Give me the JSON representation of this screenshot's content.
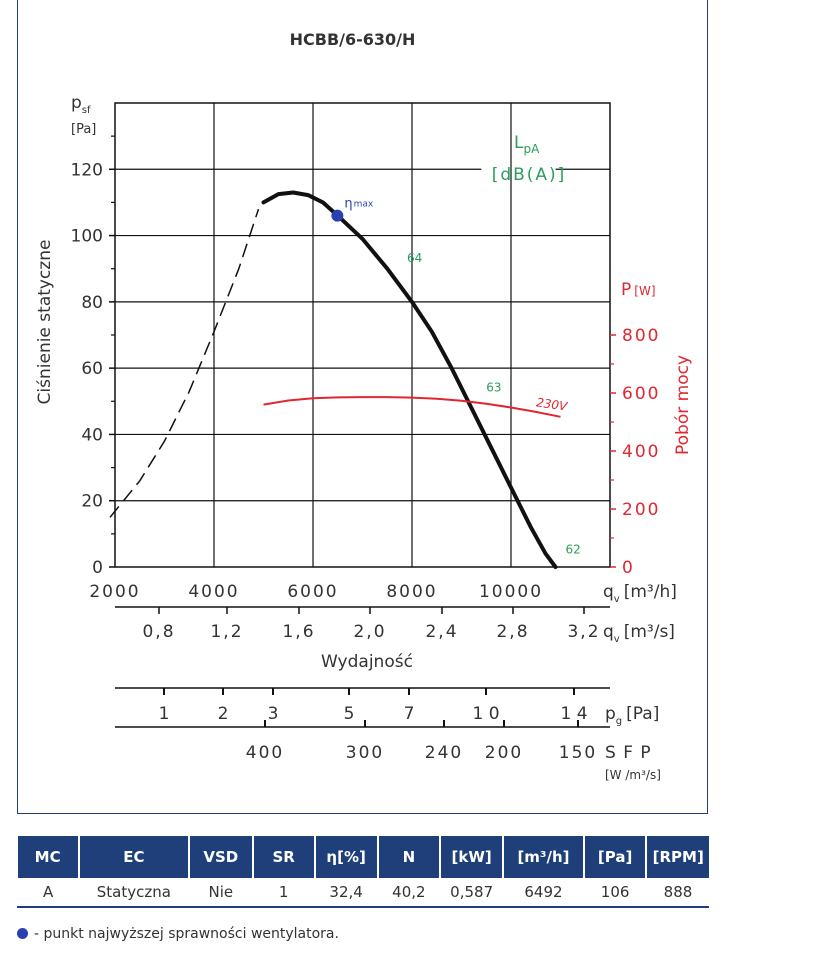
{
  "chart_data": {
    "type": "line",
    "title": "HCBB/6-630/H",
    "ylabel_main": "Ciśnienie statyczne",
    "ylabel_unit_top": "p",
    "ylabel_unit_sub": "sf",
    "ylabel_unit_bracket": "[Pa]",
    "ylim": [
      0,
      140
    ],
    "yticks": [
      "0",
      "20",
      "40",
      "60",
      "80",
      "100",
      "120"
    ],
    "x_unit": "[m³/h]",
    "xlim": [
      2000,
      12000
    ],
    "xticks": [
      "2000",
      "4000",
      "6000",
      "8000",
      "10000"
    ],
    "secondary_y": {
      "label": "Pobór mocy",
      "unit_symbol": "P",
      "unit_bracket": "[W]",
      "ticks": [
        "0",
        "200",
        "400",
        "600",
        "800"
      ]
    },
    "lpa_label": "L",
    "lpa_sub": "pA",
    "lpa_unit": "[dB(A)]",
    "eta_label": "η",
    "eta_sub": "max",
    "series": [
      {
        "role": "fan-curve",
        "x": [
          5000,
          5300,
          5600,
          5900,
          6200,
          6500,
          7000,
          7500,
          8000,
          8400,
          8800,
          9200,
          9600,
          10000,
          10400,
          10700,
          10900
        ],
        "y": [
          110,
          112.5,
          113,
          112.2,
          110,
          106,
          99,
          90,
          80,
          71,
          60,
          48,
          36,
          24,
          12,
          4,
          0
        ]
      },
      {
        "role": "fan-curve-unstable",
        "x": [
          1900,
          2500,
          3000,
          3500,
          4000,
          4500,
          4900
        ],
        "y": [
          15,
          26,
          38,
          53,
          71,
          90,
          108
        ]
      },
      {
        "role": "power-curve",
        "name": "230V",
        "x": [
          5000,
          5500,
          6000,
          6500,
          7000,
          7500,
          8000,
          8500,
          9000,
          9500,
          10000,
          10500,
          11000
        ],
        "power": [
          560,
          574,
          582,
          585,
          586,
          586,
          584,
          580,
          573,
          563,
          550,
          535,
          518
        ]
      }
    ],
    "eta_point": {
      "x": 6492,
      "y": 106
    },
    "lpa_labels": [
      {
        "text": "64",
        "x": 7900,
        "y": 92
      },
      {
        "text": "63",
        "x": 9500,
        "y": 53
      },
      {
        "text": "62",
        "x": 11100,
        "y": 4
      }
    ],
    "power_series_label": {
      "text": "230V",
      "x": 10500,
      "y": 48.5
    },
    "axis_flow_m3s": {
      "ticks": [
        "0,8",
        "1,2",
        "1,6",
        "2,0",
        "2,4",
        "2,8",
        "3,2"
      ],
      "unit_symbol": "q",
      "unit_sub": "v",
      "unit": "[m³/s]",
      "label": "Wydajność"
    },
    "axis_flow_m3h_unit": {
      "symbol": "q",
      "sub": "v"
    },
    "axis_pg": {
      "ticks": [
        "1",
        "2",
        "3",
        "5",
        "7",
        "1 0",
        "1 4"
      ],
      "unit_symbol": "p",
      "unit_sub": "g",
      "unit": "[Pa]"
    },
    "axis_sfp": {
      "ticks": [
        "400",
        "300",
        "240",
        "200",
        "150"
      ],
      "unit": "S F P",
      "unit_sub": "[W /m³/s]"
    }
  },
  "table": {
    "headers": [
      "MC",
      "EC",
      "VSD",
      "SR",
      "η[%]",
      "N",
      "[kW]",
      "[m³/h]",
      "[Pa]",
      "[RPM]"
    ],
    "row": [
      "A",
      "Statyczna",
      "Nie",
      "1",
      "32,4",
      "40,2",
      "0,587",
      "6492",
      "106",
      "888"
    ]
  },
  "footnote": "- punkt najwyższej sprawności wentylatora.",
  "colors": {
    "navy": "#1f3f7a",
    "red": "#e0262f",
    "green": "#2a9d5c",
    "point": "#2a3fb0"
  }
}
